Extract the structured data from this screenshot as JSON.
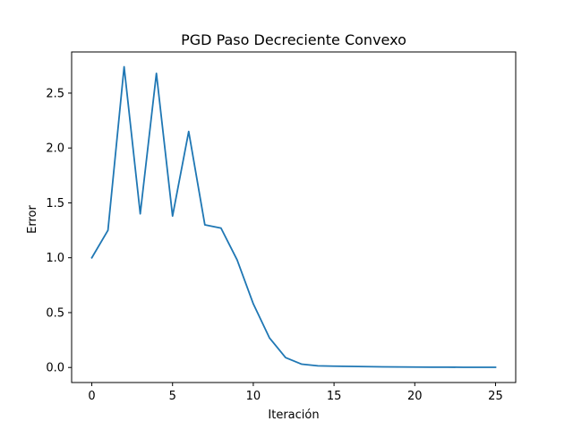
{
  "chart_data": {
    "type": "line",
    "title": "PGD Paso Decreciente Convexo",
    "xlabel": "Iteración",
    "ylabel": "Error",
    "xlim": [
      -1.25,
      26.25
    ],
    "ylim": [
      -0.137,
      2.875
    ],
    "x_ticks": [
      0,
      5,
      10,
      15,
      20,
      25
    ],
    "x_tick_labels": [
      "0",
      "5",
      "10",
      "15",
      "20",
      "25"
    ],
    "y_ticks": [
      0.0,
      0.5,
      1.0,
      1.5,
      2.0,
      2.5
    ],
    "y_tick_labels": [
      "0.0",
      "0.5",
      "1.0",
      "1.5",
      "2.0",
      "2.5"
    ],
    "grid": false,
    "legend": "none",
    "line_color": "#1f77b4",
    "series": [
      {
        "x": [
          0,
          1,
          2,
          3,
          4,
          5,
          6,
          7,
          8,
          9,
          10,
          11,
          12,
          13,
          14,
          15,
          16,
          17,
          18,
          19,
          20,
          21,
          22,
          23,
          24,
          25
        ],
        "values": [
          1.0,
          1.25,
          2.74,
          1.4,
          2.68,
          1.38,
          2.15,
          1.3,
          1.27,
          0.98,
          0.58,
          0.27,
          0.09,
          0.03,
          0.015,
          0.012,
          0.01,
          0.008,
          0.006,
          0.005,
          0.004,
          0.003,
          0.003,
          0.002,
          0.002,
          0.002
        ]
      }
    ]
  }
}
